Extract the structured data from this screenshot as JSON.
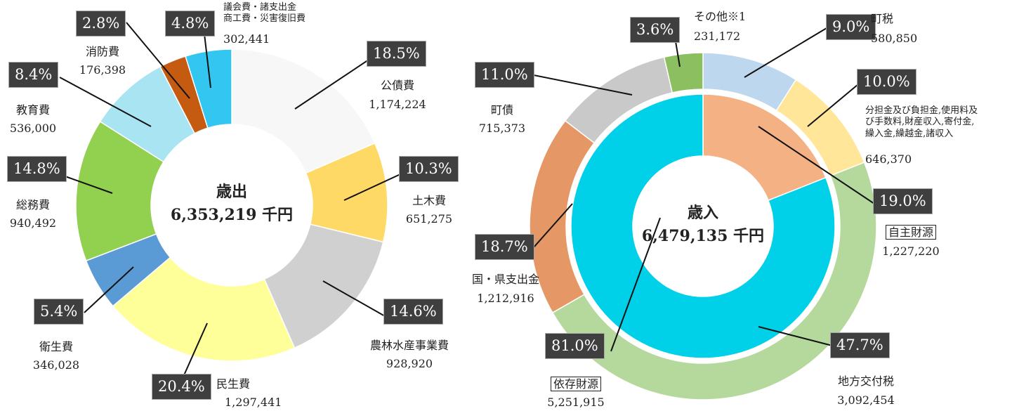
{
  "chart_data": [
    {
      "type": "donut",
      "center_title": "歳出",
      "center_total": "6,353,219 千円",
      "series": [
        {
          "categories": [
            "公債費",
            "土木費",
            "農林水産事業費",
            "民生費",
            "衛生費",
            "総務費",
            "教育費",
            "消防費",
            "議会費・諸支出金\n商工費・災害復旧費"
          ],
          "values": [
            18.5,
            10.3,
            14.6,
            20.4,
            5.4,
            14.8,
            8.4,
            2.8,
            4.8
          ],
          "value_labels": [
            "18.5%",
            "10.3%",
            "14.6%",
            "20.4%",
            "5.4%",
            "14.8%",
            "8.4%",
            "2.8%",
            "4.8%"
          ],
          "amounts": [
            "1,174,224",
            "651,275",
            "928,920",
            "1,297,441",
            "346,028",
            "940,492",
            "536,000",
            "176,398",
            "302,441"
          ],
          "colors": [
            "#f7f7f7",
            "#ffd966",
            "#d0d0d0",
            "#ffff99",
            "#5b9bd5",
            "#92d050",
            "#a9e4f2",
            "#c55a11",
            "#33c6f0"
          ]
        }
      ]
    },
    {
      "type": "donut",
      "center_title": "歳入",
      "center_total": "6,479,135 千円",
      "series": [
        {
          "categories": [
            "町税",
            "分担金及び負担金,使用料及\nび手数料,財産収入,寄付金,\n繰入金,繰越金,諸収入",
            "地方交付税",
            "国・県支出金",
            "町債",
            "その他※1"
          ],
          "values": [
            9.0,
            10.0,
            47.7,
            18.7,
            11.0,
            3.6
          ],
          "value_labels": [
            "9.0%",
            "10.0%",
            "47.7%",
            "18.7%",
            "11.0%",
            "3.6%"
          ],
          "amounts": [
            "580,850",
            "646,370",
            "3,092,454",
            "1,212,916",
            "715,373",
            "231,172"
          ],
          "colors": [
            "#bdd7ee",
            "#ffe699",
            "#b5d99c",
            "#e59866",
            "#c9c9c9",
            "#8cbf5f"
          ]
        },
        {
          "categories": [
            "自主財源",
            "依存財源"
          ],
          "boxed": true,
          "values": [
            19.0,
            81.0
          ],
          "value_labels": [
            "19.0%",
            "81.0%"
          ],
          "amounts": [
            "1,227,220",
            "5,251,915"
          ],
          "colors": [
            "#f4b183",
            "#00d0e8"
          ]
        }
      ]
    }
  ]
}
